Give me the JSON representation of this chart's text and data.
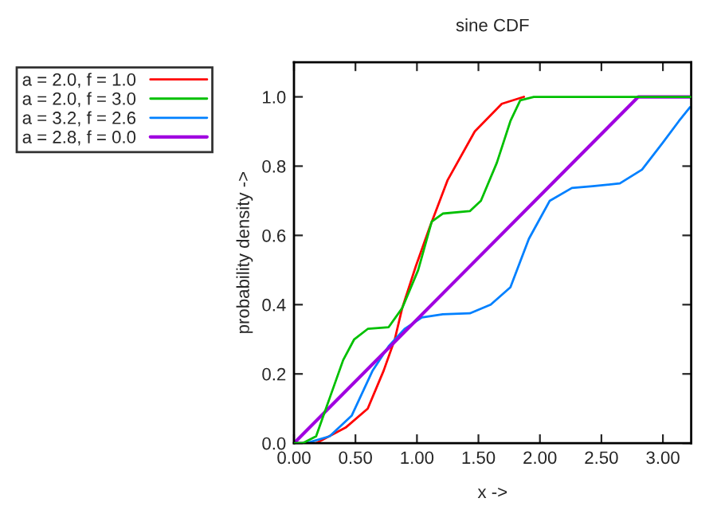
{
  "chart_data": {
    "type": "line",
    "title": "sine CDF",
    "xlabel": "x ->",
    "ylabel": "probability density ->",
    "xlim": [
      0,
      3.23
    ],
    "ylim": [
      0,
      1.1
    ],
    "xticks": [
      {
        "value": 0,
        "label": "0.00"
      },
      {
        "value": 0.5,
        "label": "0.50"
      },
      {
        "value": 1.0,
        "label": "1.00"
      },
      {
        "value": 1.5,
        "label": "1.50"
      },
      {
        "value": 2.0,
        "label": "2.00"
      },
      {
        "value": 2.5,
        "label": "2.50"
      },
      {
        "value": 3.0,
        "label": "3.00"
      }
    ],
    "yticks": [
      {
        "value": 0,
        "label": "0.0"
      },
      {
        "value": 0.2,
        "label": "0.2"
      },
      {
        "value": 0.4,
        "label": "0.4"
      },
      {
        "value": 0.6,
        "label": "0.6"
      },
      {
        "value": 0.8,
        "label": "0.8"
      },
      {
        "value": 1.0,
        "label": "1.0"
      }
    ],
    "grid": false,
    "legend": "left",
    "marker": "none",
    "line_style": "solid",
    "series": [
      {
        "name": "a = 2.0, f = 1.0",
        "color": "#ff0000",
        "x": [
          0,
          0.18,
          0.42,
          0.6,
          0.73,
          0.82,
          0.88,
          0.99,
          1.1,
          1.25,
          1.47,
          1.69,
          1.87
        ],
        "values": [
          0,
          0,
          0.045,
          0.1,
          0.21,
          0.3,
          0.39,
          0.51,
          0.62,
          0.76,
          0.9,
          0.98,
          1.0
        ]
      },
      {
        "name": "a = 2.0, f = 3.0",
        "color": "#00c000",
        "x": [
          0,
          0.07,
          0.18,
          0.29,
          0.4,
          0.49,
          0.6,
          0.77,
          0.88,
          1.01,
          1.12,
          1.21,
          1.43,
          1.52,
          1.65,
          1.76,
          1.84,
          1.95,
          3.23
        ],
        "values": [
          0,
          0,
          0.02,
          0.13,
          0.24,
          0.3,
          0.33,
          0.335,
          0.39,
          0.5,
          0.64,
          0.663,
          0.67,
          0.7,
          0.81,
          0.93,
          0.99,
          1.0,
          1.0
        ]
      },
      {
        "name": "a = 3.2, f = 2.6",
        "color": "#0080ff",
        "x": [
          0,
          0.1,
          0.29,
          0.47,
          0.64,
          0.77,
          0.9,
          1.04,
          1.21,
          1.43,
          1.6,
          1.76,
          1.91,
          2.08,
          2.26,
          2.43,
          2.65,
          2.83,
          3.0,
          3.13,
          3.22
        ],
        "values": [
          0,
          0,
          0.02,
          0.08,
          0.21,
          0.28,
          0.33,
          0.363,
          0.372,
          0.375,
          0.4,
          0.45,
          0.59,
          0.7,
          0.737,
          0.742,
          0.75,
          0.79,
          0.868,
          0.93,
          0.97
        ]
      },
      {
        "name": "a = 2.8, f = 0.0",
        "color": "#a000e0",
        "x": [
          0,
          2.8,
          3.23
        ],
        "values": [
          0,
          1.0,
          1.0
        ]
      }
    ]
  }
}
